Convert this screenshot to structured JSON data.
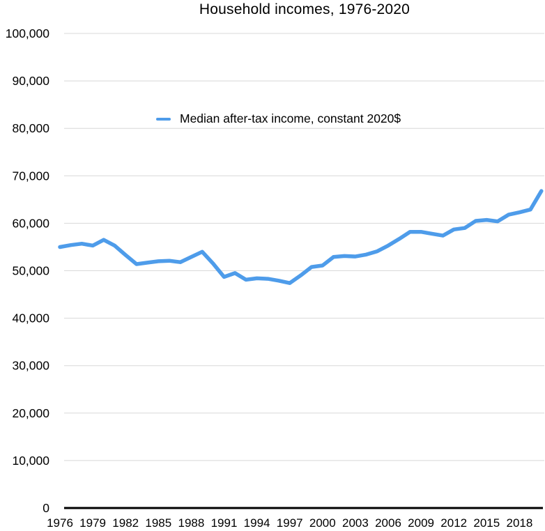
{
  "title": "Household incomes, 1976-2020",
  "legend": {
    "label": "Median after-tax income, constant 2020$"
  },
  "colors": {
    "line": "#4E9CEA",
    "gridline": "#D8D8D8",
    "axis": "#000000",
    "text": "#000000"
  },
  "chart_data": {
    "type": "line",
    "title": "Household incomes, 1976-2020",
    "xlabel": "",
    "ylabel": "",
    "ylim": [
      0,
      100000
    ],
    "grid": "horizontal",
    "legend_position": "inside-upper-left",
    "y_ticks": [
      0,
      10000,
      20000,
      30000,
      40000,
      50000,
      60000,
      70000,
      80000,
      90000,
      100000
    ],
    "y_tick_labels": [
      "0",
      "10,000",
      "20,000",
      "30,000",
      "40,000",
      "50,000",
      "60,000",
      "70,000",
      "80,000",
      "90,000",
      "100,000"
    ],
    "x": [
      1976,
      1977,
      1978,
      1979,
      1980,
      1981,
      1982,
      1983,
      1984,
      1985,
      1986,
      1987,
      1988,
      1989,
      1990,
      1991,
      1992,
      1993,
      1994,
      1995,
      1996,
      1997,
      1998,
      1999,
      2000,
      2001,
      2002,
      2003,
      2004,
      2005,
      2006,
      2007,
      2008,
      2009,
      2010,
      2011,
      2012,
      2013,
      2014,
      2015,
      2016,
      2017,
      2018,
      2019,
      2020
    ],
    "x_tick_labels": [
      "1976",
      "1979",
      "1982",
      "1985",
      "1988",
      "1991",
      "1994",
      "1997",
      "2000",
      "2003",
      "2006",
      "2009",
      "2012",
      "2015",
      "2018"
    ],
    "series": [
      {
        "name": "Median after-tax income, constant 2020$",
        "color": "#4E9CEA",
        "values": [
          55000,
          55400,
          55700,
          55300,
          56500,
          55300,
          53300,
          51400,
          51700,
          52000,
          52100,
          51800,
          52900,
          54000,
          51500,
          48700,
          49500,
          48100,
          48400,
          48300,
          47900,
          47400,
          49000,
          50800,
          51100,
          52900,
          53100,
          53000,
          53400,
          54100,
          55300,
          56700,
          58200,
          58200,
          57800,
          57400,
          58700,
          59000,
          60500,
          60700,
          60400,
          61800,
          62300,
          62900,
          66800
        ]
      }
    ]
  }
}
